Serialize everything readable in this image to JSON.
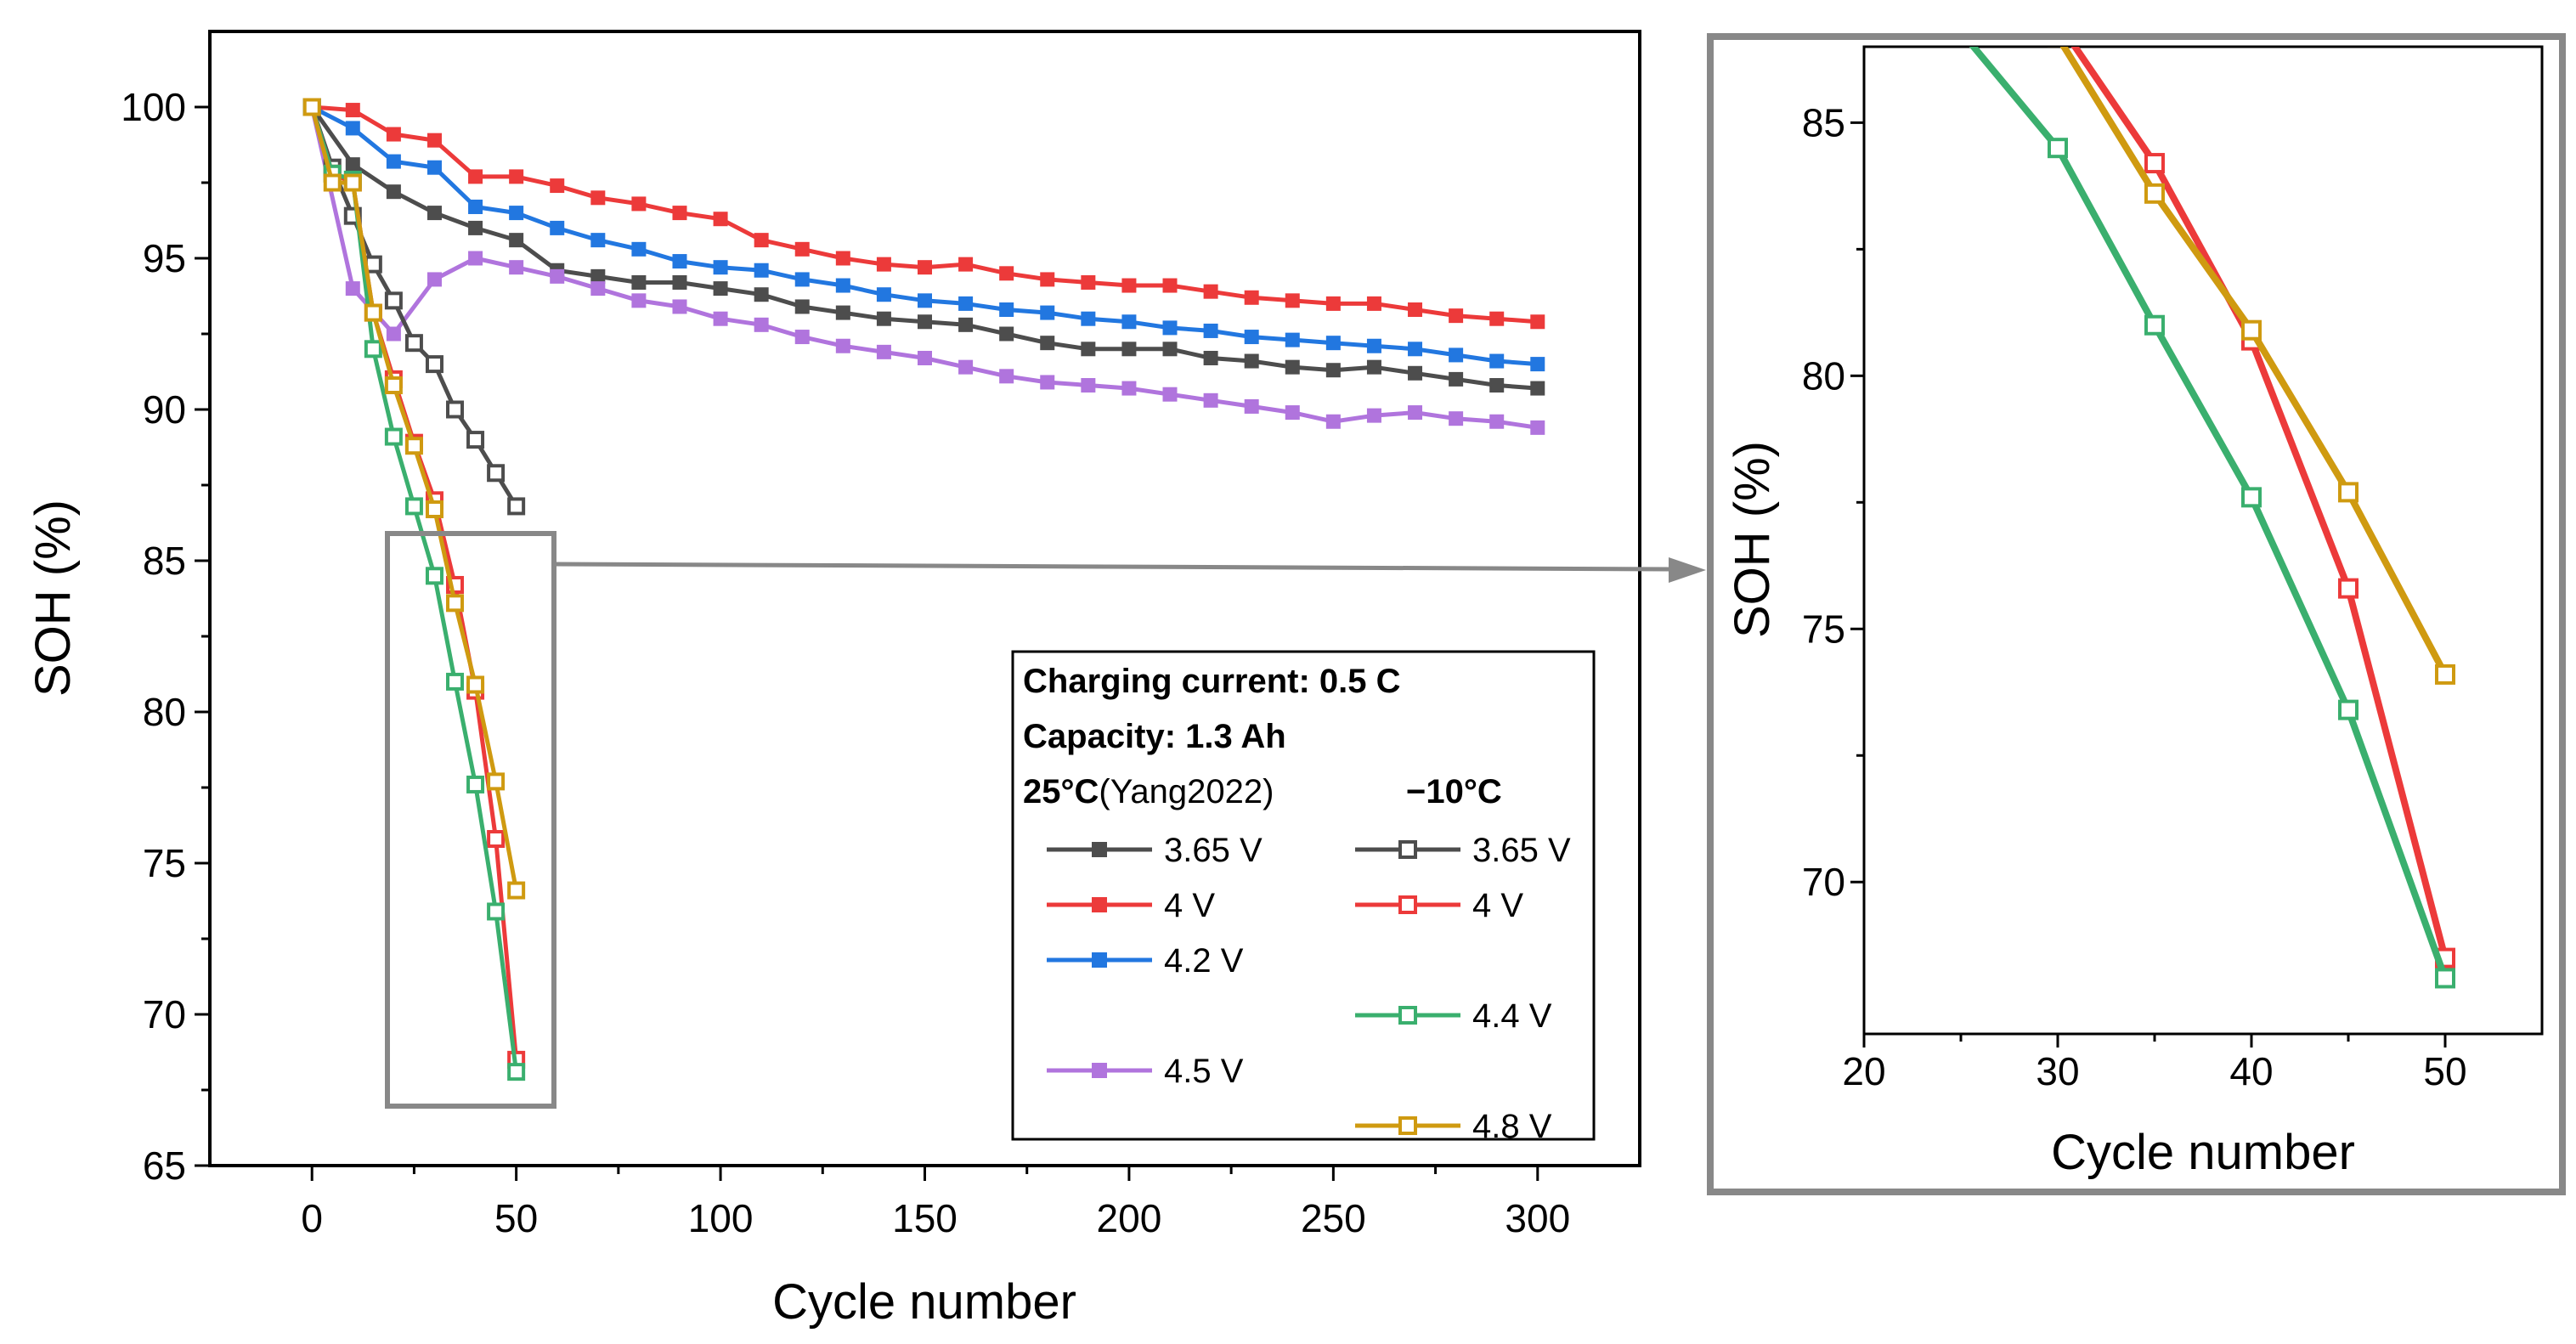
{
  "colors": {
    "gray": "#4d4d4d",
    "red": "#ec3a3a",
    "blue": "#2277e0",
    "purple": "#b074dd",
    "green": "#3aaf6e",
    "gold": "#cf9a10",
    "zoom_frame": "#888888"
  },
  "legend": {
    "title1": "Charging current: 0.5 C",
    "title2": "Capacity: 1.3 Ah",
    "col1_header_bold": "25°C",
    "col1_header_normal": "(Yang2022)",
    "col2_header": "−10°C"
  },
  "chart_data": [
    {
      "type": "line",
      "xlabel": "Cycle number",
      "ylabel": "SOH (%)",
      "xlim": [
        -25,
        325
      ],
      "ylim": [
        65,
        102.5
      ],
      "xticks": [
        0,
        50,
        100,
        150,
        200,
        250,
        300
      ],
      "yticks": [
        65,
        70,
        75,
        80,
        85,
        90,
        95,
        100
      ],
      "grid": false,
      "legend_position": "bottom-right",
      "series": [
        {
          "name": "3.65 V",
          "group": "25°C",
          "color": "gray",
          "marker": "square-filled",
          "x": [
            0,
            10,
            20,
            30,
            40,
            50,
            60,
            70,
            80,
            90,
            100,
            110,
            120,
            130,
            140,
            150,
            160,
            170,
            180,
            190,
            200,
            210,
            220,
            230,
            240,
            250,
            260,
            270,
            280,
            290,
            300
          ],
          "y": [
            100,
            98.1,
            97.2,
            96.5,
            96.0,
            95.6,
            94.6,
            94.4,
            94.2,
            94.2,
            94.0,
            93.8,
            93.4,
            93.2,
            93.0,
            92.9,
            92.8,
            92.5,
            92.2,
            92.0,
            92.0,
            92.0,
            91.7,
            91.6,
            91.4,
            91.3,
            91.4,
            91.2,
            91.0,
            90.8,
            90.7
          ]
        },
        {
          "name": "4 V",
          "group": "25°C",
          "color": "red",
          "marker": "square-filled",
          "x": [
            0,
            10,
            20,
            30,
            40,
            50,
            60,
            70,
            80,
            90,
            100,
            110,
            120,
            130,
            140,
            150,
            160,
            170,
            180,
            190,
            200,
            210,
            220,
            230,
            240,
            250,
            260,
            270,
            280,
            290,
            300
          ],
          "y": [
            100,
            99.9,
            99.1,
            98.9,
            97.7,
            97.7,
            97.4,
            97.0,
            96.8,
            96.5,
            96.3,
            95.6,
            95.3,
            95.0,
            94.8,
            94.7,
            94.8,
            94.5,
            94.3,
            94.2,
            94.1,
            94.1,
            93.9,
            93.7,
            93.6,
            93.5,
            93.5,
            93.3,
            93.1,
            93.0,
            92.9
          ]
        },
        {
          "name": "4.2 V",
          "group": "25°C",
          "color": "blue",
          "marker": "square-filled",
          "x": [
            0,
            10,
            20,
            30,
            40,
            50,
            60,
            70,
            80,
            90,
            100,
            110,
            120,
            130,
            140,
            150,
            160,
            170,
            180,
            190,
            200,
            210,
            220,
            230,
            240,
            250,
            260,
            270,
            280,
            290,
            300
          ],
          "y": [
            100,
            99.3,
            98.2,
            98.0,
            96.7,
            96.5,
            96.0,
            95.6,
            95.3,
            94.9,
            94.7,
            94.6,
            94.3,
            94.1,
            93.8,
            93.6,
            93.5,
            93.3,
            93.2,
            93.0,
            92.9,
            92.7,
            92.6,
            92.4,
            92.3,
            92.2,
            92.1,
            92.0,
            91.8,
            91.6,
            91.5
          ]
        },
        {
          "name": "4.5 V",
          "group": "25°C",
          "color": "purple",
          "marker": "square-filled",
          "x": [
            0,
            10,
            20,
            30,
            40,
            50,
            60,
            70,
            80,
            90,
            100,
            110,
            120,
            130,
            140,
            150,
            160,
            170,
            180,
            190,
            200,
            210,
            220,
            230,
            240,
            250,
            260,
            270,
            280,
            290,
            300
          ],
          "y": [
            100,
            94.0,
            92.5,
            94.3,
            95.0,
            94.7,
            94.4,
            94.0,
            93.6,
            93.4,
            93.0,
            92.8,
            92.4,
            92.1,
            91.9,
            91.7,
            91.4,
            91.1,
            90.9,
            90.8,
            90.7,
            90.5,
            90.3,
            90.1,
            89.9,
            89.6,
            89.8,
            89.9,
            89.7,
            89.6,
            89.4
          ]
        },
        {
          "name": "3.65 V",
          "group": "−10°C",
          "color": "gray",
          "marker": "square-open",
          "x": [
            0,
            5,
            10,
            15,
            20,
            25,
            30,
            35,
            40,
            45,
            50
          ],
          "y": [
            100,
            98.0,
            96.4,
            94.8,
            93.6,
            92.2,
            91.5,
            90.0,
            89.0,
            87.9,
            86.8
          ]
        },
        {
          "name": "4 V",
          "group": "−10°C",
          "color": "red",
          "marker": "square-open",
          "x": [
            0,
            5,
            10,
            15,
            20,
            25,
            30,
            35,
            40,
            45,
            50
          ],
          "y": [
            100,
            97.8,
            97.5,
            93.2,
            91.0,
            88.9,
            87.0,
            84.2,
            80.7,
            75.8,
            68.5
          ]
        },
        {
          "name": "4.4 V",
          "group": "−10°C",
          "color": "green",
          "marker": "square-open",
          "x": [
            0,
            5,
            10,
            15,
            20,
            25,
            30,
            35,
            40,
            45,
            50
          ],
          "y": [
            100,
            97.8,
            97.6,
            92.0,
            89.1,
            86.8,
            84.5,
            81.0,
            77.6,
            73.4,
            68.1
          ]
        },
        {
          "name": "4.8 V",
          "group": "−10°C",
          "color": "gold",
          "marker": "square-open",
          "x": [
            0,
            5,
            10,
            15,
            20,
            25,
            30,
            35,
            40,
            45,
            50
          ],
          "y": [
            100,
            97.5,
            97.5,
            93.2,
            90.8,
            88.8,
            86.7,
            83.6,
            80.9,
            77.7,
            74.1
          ]
        }
      ]
    },
    {
      "type": "line",
      "xlabel": "Cycle number",
      "ylabel": "SOH (%)",
      "xlim": [
        20,
        55
      ],
      "ylim": [
        67,
        86.5
      ],
      "xticks": [
        20,
        30,
        40,
        50
      ],
      "yticks": [
        70,
        75,
        80,
        85
      ],
      "grid": false,
      "series": [
        {
          "color": "red",
          "marker": "square-open",
          "x": [
            25,
            30,
            35,
            40,
            45,
            50
          ],
          "y": [
            88.9,
            87.0,
            84.2,
            80.7,
            75.8,
            68.5
          ]
        },
        {
          "color": "green",
          "marker": "square-open",
          "x": [
            25,
            30,
            35,
            40,
            45,
            50
          ],
          "y": [
            86.8,
            84.5,
            81.0,
            77.6,
            73.4,
            68.1
          ]
        },
        {
          "color": "gold",
          "marker": "square-open",
          "x": [
            25,
            30,
            35,
            40,
            45,
            50
          ],
          "y": [
            88.8,
            86.7,
            83.6,
            80.9,
            77.7,
            74.1
          ]
        }
      ]
    }
  ]
}
